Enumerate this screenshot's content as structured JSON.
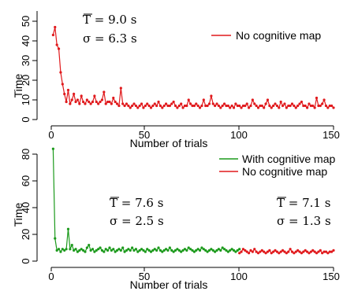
{
  "chart_data": [
    {
      "type": "line",
      "xlabel": "Number of trials",
      "ylabel": "Time",
      "xlim": [
        0,
        152
      ],
      "ylim": [
        0,
        55
      ],
      "xticks": [
        0,
        50,
        100,
        150
      ],
      "yticks": [
        0,
        10,
        20,
        30,
        40,
        50
      ],
      "grid": false,
      "legend": [
        {
          "label": "No cognitive map",
          "color": "#e0191c"
        }
      ],
      "annotations": [
        {
          "mean_label": "T = 9.0 s",
          "sd_label": "σ = 6.3 s"
        }
      ],
      "series": [
        {
          "name": "No cognitive map",
          "color": "#e0191c",
          "x": [
            1,
            2,
            3,
            4,
            5,
            6,
            7,
            8,
            9,
            10,
            11,
            12,
            13,
            14,
            15,
            16,
            17,
            18,
            19,
            20,
            21,
            22,
            23,
            24,
            25,
            26,
            27,
            28,
            29,
            30,
            31,
            32,
            33,
            34,
            35,
            36,
            37,
            38,
            39,
            40,
            41,
            42,
            43,
            44,
            45,
            46,
            47,
            48,
            49,
            50,
            51,
            52,
            53,
            54,
            55,
            56,
            57,
            58,
            59,
            60,
            61,
            62,
            63,
            64,
            65,
            66,
            67,
            68,
            69,
            70,
            71,
            72,
            73,
            74,
            75,
            76,
            77,
            78,
            79,
            80,
            81,
            82,
            83,
            84,
            85,
            86,
            87,
            88,
            89,
            90,
            91,
            92,
            93,
            94,
            95,
            96,
            97,
            98,
            99,
            100,
            101,
            102,
            103,
            104,
            105,
            106,
            107,
            108,
            109,
            110,
            111,
            112,
            113,
            114,
            115,
            116,
            117,
            118,
            119,
            120,
            121,
            122,
            123,
            124,
            125,
            126,
            127,
            128,
            129,
            130,
            131,
            132,
            133,
            134,
            135,
            136,
            137,
            138,
            139,
            140,
            141,
            142,
            143,
            144,
            145,
            146,
            147,
            148,
            149,
            150
          ],
          "y": [
            43,
            47,
            38,
            36,
            24,
            18,
            13,
            9,
            15,
            8,
            10,
            13,
            9,
            10,
            8,
            12,
            9,
            8,
            10,
            9,
            8,
            9,
            12,
            9,
            8,
            9,
            10,
            14,
            8,
            9,
            9,
            8,
            11,
            9,
            8,
            7,
            16,
            8,
            7,
            8,
            7,
            6,
            7,
            8,
            7,
            6,
            7,
            8,
            6,
            7,
            8,
            7,
            6,
            7,
            8,
            7,
            9,
            7,
            6,
            7,
            8,
            7,
            7,
            8,
            9,
            7,
            6,
            7,
            8,
            6,
            7,
            7,
            10,
            8,
            7,
            7,
            8,
            7,
            6,
            7,
            10,
            7,
            7,
            8,
            12,
            8,
            7,
            8,
            7,
            6,
            7,
            8,
            7,
            7,
            6,
            7,
            6,
            8,
            7,
            7,
            6,
            7,
            7,
            8,
            6,
            7,
            10,
            8,
            7,
            6,
            7,
            7,
            6,
            8,
            10,
            7,
            6,
            7,
            8,
            7,
            6,
            9,
            7,
            8,
            6,
            7,
            7,
            8,
            7,
            6,
            7,
            8,
            9,
            7,
            7,
            6,
            8,
            7,
            7,
            6,
            11,
            7,
            7,
            8,
            10,
            7,
            6,
            7,
            7,
            6
          ]
        }
      ]
    },
    {
      "type": "line",
      "xlabel": "Number of trials",
      "ylabel": "Time",
      "xlim": [
        0,
        152
      ],
      "ylim": [
        0,
        85
      ],
      "xticks": [
        0,
        50,
        100,
        150
      ],
      "yticks": [
        0,
        20,
        40,
        60,
        80
      ],
      "grid": false,
      "legend": [
        {
          "label": "With cognitive map",
          "color": "#1c9a1c"
        },
        {
          "label": "No cognitive map",
          "color": "#e0191c"
        }
      ],
      "annotations": [
        {
          "mean_label": "T = 7.6 s",
          "sd_label": "σ = 2.5 s"
        },
        {
          "mean_label": "T = 7.1 s",
          "sd_label": "σ = 1.3 s"
        }
      ],
      "series": [
        {
          "name": "With cognitive map",
          "color": "#1c9a1c",
          "x": [
            1,
            2,
            3,
            4,
            5,
            6,
            7,
            8,
            9,
            10,
            11,
            12,
            13,
            14,
            15,
            16,
            17,
            18,
            19,
            20,
            21,
            22,
            23,
            24,
            25,
            26,
            27,
            28,
            29,
            30,
            31,
            32,
            33,
            34,
            35,
            36,
            37,
            38,
            39,
            40,
            41,
            42,
            43,
            44,
            45,
            46,
            47,
            48,
            49,
            50,
            51,
            52,
            53,
            54,
            55,
            56,
            57,
            58,
            59,
            60,
            61,
            62,
            63,
            64,
            65,
            66,
            67,
            68,
            69,
            70,
            71,
            72,
            73,
            74,
            75,
            76,
            77,
            78,
            79,
            80,
            81,
            82,
            83,
            84,
            85,
            86,
            87,
            88,
            89,
            90,
            91,
            92,
            93,
            94,
            95,
            96,
            97,
            98,
            99,
            100
          ],
          "y": [
            84,
            17,
            8,
            9,
            7,
            9,
            8,
            9,
            24,
            9,
            12,
            8,
            9,
            7,
            8,
            9,
            8,
            7,
            10,
            12,
            8,
            9,
            7,
            8,
            9,
            10,
            8,
            7,
            9,
            8,
            10,
            8,
            9,
            7,
            8,
            9,
            8,
            10,
            7,
            8,
            9,
            8,
            10,
            8,
            9,
            7,
            8,
            9,
            8,
            7,
            9,
            8,
            7,
            8,
            9,
            8,
            10,
            8,
            7,
            8,
            9,
            8,
            10,
            8,
            7,
            8,
            9,
            8,
            7,
            8,
            9,
            8,
            10,
            9,
            8,
            7,
            8,
            9,
            8,
            10,
            9,
            8,
            7,
            8,
            9,
            8,
            7,
            8,
            9,
            8,
            10,
            9,
            8,
            7,
            8,
            9,
            8,
            7,
            8,
            9
          ]
        },
        {
          "name": "No cognitive map",
          "color": "#e0191c",
          "x": [
            100,
            101,
            102,
            103,
            104,
            105,
            106,
            107,
            108,
            109,
            110,
            111,
            112,
            113,
            114,
            115,
            116,
            117,
            118,
            119,
            120,
            121,
            122,
            123,
            124,
            125,
            126,
            127,
            128,
            129,
            130,
            131,
            132,
            133,
            134,
            135,
            136,
            137,
            138,
            139,
            140,
            141,
            142,
            143,
            144,
            145,
            146,
            147,
            148,
            149,
            150
          ],
          "y": [
            6,
            7,
            9,
            8,
            7,
            6,
            8,
            7,
            9,
            7,
            6,
            7,
            8,
            7,
            6,
            7,
            8,
            6,
            7,
            8,
            7,
            6,
            7,
            8,
            7,
            6,
            7,
            9,
            7,
            6,
            7,
            8,
            7,
            6,
            7,
            8,
            7,
            6,
            7,
            8,
            7,
            6,
            7,
            8,
            6,
            7,
            7,
            6,
            7,
            7,
            8
          ]
        }
      ]
    }
  ]
}
